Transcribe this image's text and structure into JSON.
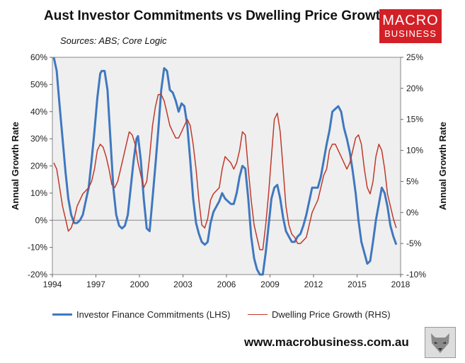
{
  "title": "Aust Investor Commitments vs Dwelling Price Growth",
  "subtitle": "Sources: ABS; Core Logic",
  "logo": {
    "line1": "MACRO",
    "line2": "BUSINESS",
    "color": "#d32027"
  },
  "footer": {
    "url": "www.macrobusiness.com.au",
    "icon": "wolf-icon"
  },
  "chart_data": {
    "type": "line",
    "xlim": [
      1994,
      2018
    ],
    "x_ticks": [
      "1994",
      "1997",
      "2000",
      "2003",
      "2006",
      "2009",
      "2012",
      "2015",
      "2018"
    ],
    "ylabel": "Annual Growth Rate",
    "ylim": [
      -20,
      60
    ],
    "y_ticks": [
      "-20%",
      "-10%",
      "0%",
      "10%",
      "20%",
      "30%",
      "40%",
      "50%",
      "60%"
    ],
    "y2label": "Annual Growth Rate",
    "y2lim": [
      -10,
      25
    ],
    "y2_ticks": [
      "-10%",
      "-5%",
      "0%",
      "5%",
      "10%",
      "15%",
      "20%",
      "25%"
    ],
    "grid": false,
    "legend": "bottom",
    "series": [
      {
        "name": "Investor Finance Commitments (LHS)",
        "axis": "left",
        "color": "#3f78bf",
        "points": [
          [
            1994.1,
            60
          ],
          [
            1994.3,
            55
          ],
          [
            1994.5,
            42
          ],
          [
            1994.7,
            30
          ],
          [
            1994.9,
            18
          ],
          [
            1995.1,
            8
          ],
          [
            1995.3,
            2
          ],
          [
            1995.5,
            -1
          ],
          [
            1995.7,
            -1
          ],
          [
            1995.9,
            0
          ],
          [
            1996.1,
            2
          ],
          [
            1996.3,
            7
          ],
          [
            1996.5,
            12
          ],
          [
            1996.7,
            22
          ],
          [
            1996.9,
            33
          ],
          [
            1997.1,
            45
          ],
          [
            1997.3,
            54
          ],
          [
            1997.4,
            55
          ],
          [
            1997.6,
            55
          ],
          [
            1997.8,
            48
          ],
          [
            1998.0,
            30
          ],
          [
            1998.2,
            12
          ],
          [
            1998.4,
            2
          ],
          [
            1998.6,
            -2
          ],
          [
            1998.8,
            -3
          ],
          [
            1999.0,
            -2
          ],
          [
            1999.2,
            2
          ],
          [
            1999.4,
            12
          ],
          [
            1999.6,
            22
          ],
          [
            1999.8,
            30
          ],
          [
            1999.9,
            31
          ],
          [
            2000.1,
            22
          ],
          [
            2000.3,
            8
          ],
          [
            2000.5,
            -3
          ],
          [
            2000.7,
            -4
          ],
          [
            2000.9,
            8
          ],
          [
            2001.1,
            20
          ],
          [
            2001.3,
            33
          ],
          [
            2001.5,
            48
          ],
          [
            2001.7,
            56
          ],
          [
            2001.9,
            55
          ],
          [
            2002.1,
            48
          ],
          [
            2002.3,
            47
          ],
          [
            2002.5,
            44
          ],
          [
            2002.7,
            40
          ],
          [
            2002.9,
            43
          ],
          [
            2003.1,
            42
          ],
          [
            2003.3,
            35
          ],
          [
            2003.5,
            22
          ],
          [
            2003.7,
            8
          ],
          [
            2003.9,
            -1
          ],
          [
            2004.1,
            -5
          ],
          [
            2004.3,
            -8
          ],
          [
            2004.5,
            -9
          ],
          [
            2004.7,
            -8
          ],
          [
            2004.9,
            -1
          ],
          [
            2005.1,
            3
          ],
          [
            2005.3,
            5
          ],
          [
            2005.5,
            7
          ],
          [
            2005.7,
            10
          ],
          [
            2005.9,
            8
          ],
          [
            2006.1,
            7
          ],
          [
            2006.3,
            6
          ],
          [
            2006.5,
            6
          ],
          [
            2006.7,
            10
          ],
          [
            2006.9,
            16
          ],
          [
            2007.1,
            20
          ],
          [
            2007.3,
            19
          ],
          [
            2007.5,
            8
          ],
          [
            2007.7,
            -6
          ],
          [
            2007.9,
            -14
          ],
          [
            2008.1,
            -18
          ],
          [
            2008.3,
            -20
          ],
          [
            2008.5,
            -20
          ],
          [
            2008.7,
            -12
          ],
          [
            2008.9,
            -2
          ],
          [
            2009.1,
            8
          ],
          [
            2009.3,
            12
          ],
          [
            2009.5,
            13
          ],
          [
            2009.7,
            8
          ],
          [
            2009.9,
            1
          ],
          [
            2010.1,
            -4
          ],
          [
            2010.3,
            -6
          ],
          [
            2010.5,
            -8
          ],
          [
            2010.7,
            -8
          ],
          [
            2010.9,
            -6
          ],
          [
            2011.1,
            -5
          ],
          [
            2011.3,
            -2
          ],
          [
            2011.5,
            2
          ],
          [
            2011.7,
            7
          ],
          [
            2011.9,
            12
          ],
          [
            2012.1,
            12
          ],
          [
            2012.3,
            12
          ],
          [
            2012.5,
            16
          ],
          [
            2012.7,
            22
          ],
          [
            2012.9,
            28
          ],
          [
            2013.1,
            33
          ],
          [
            2013.3,
            40
          ],
          [
            2013.5,
            41
          ],
          [
            2013.7,
            42
          ],
          [
            2013.9,
            40
          ],
          [
            2014.1,
            34
          ],
          [
            2014.3,
            30
          ],
          [
            2014.5,
            25
          ],
          [
            2014.7,
            18
          ],
          [
            2014.9,
            10
          ],
          [
            2015.1,
            0
          ],
          [
            2015.3,
            -8
          ],
          [
            2015.5,
            -12
          ],
          [
            2015.7,
            -16
          ],
          [
            2015.9,
            -15
          ],
          [
            2016.1,
            -8
          ],
          [
            2016.3,
            0
          ],
          [
            2016.5,
            6
          ],
          [
            2016.7,
            12
          ],
          [
            2016.9,
            10
          ],
          [
            2017.1,
            5
          ],
          [
            2017.3,
            -2
          ],
          [
            2017.5,
            -6
          ],
          [
            2017.7,
            -9
          ]
        ]
      },
      {
        "name": "Dwelling Price Growth (RHS)",
        "axis": "right",
        "color": "#c0392b",
        "points": [
          [
            1994.1,
            8
          ],
          [
            1994.3,
            7
          ],
          [
            1994.5,
            4
          ],
          [
            1994.7,
            1
          ],
          [
            1994.9,
            -1
          ],
          [
            1995.1,
            -3
          ],
          [
            1995.3,
            -2.5
          ],
          [
            1995.5,
            -1
          ],
          [
            1995.7,
            1
          ],
          [
            1995.9,
            2
          ],
          [
            1996.1,
            3
          ],
          [
            1996.3,
            3.5
          ],
          [
            1996.5,
            4
          ],
          [
            1996.7,
            5
          ],
          [
            1996.9,
            7
          ],
          [
            1997.1,
            10
          ],
          [
            1997.3,
            11
          ],
          [
            1997.5,
            10.5
          ],
          [
            1997.7,
            9
          ],
          [
            1997.9,
            7
          ],
          [
            1998.1,
            4.5
          ],
          [
            1998.3,
            4
          ],
          [
            1998.5,
            5
          ],
          [
            1998.7,
            7
          ],
          [
            1998.9,
            9
          ],
          [
            1999.1,
            11
          ],
          [
            1999.3,
            13
          ],
          [
            1999.5,
            12.5
          ],
          [
            1999.7,
            11
          ],
          [
            1999.9,
            8
          ],
          [
            2000.1,
            6
          ],
          [
            2000.3,
            4
          ],
          [
            2000.5,
            5
          ],
          [
            2000.7,
            9
          ],
          [
            2000.9,
            14
          ],
          [
            2001.1,
            17
          ],
          [
            2001.3,
            19
          ],
          [
            2001.5,
            19
          ],
          [
            2001.7,
            18
          ],
          [
            2001.9,
            16
          ],
          [
            2002.1,
            14
          ],
          [
            2002.3,
            13
          ],
          [
            2002.5,
            12
          ],
          [
            2002.7,
            12
          ],
          [
            2002.9,
            13
          ],
          [
            2003.1,
            14
          ],
          [
            2003.3,
            15
          ],
          [
            2003.5,
            14
          ],
          [
            2003.7,
            11
          ],
          [
            2003.9,
            7
          ],
          [
            2004.1,
            2
          ],
          [
            2004.3,
            -2
          ],
          [
            2004.5,
            -2.5
          ],
          [
            2004.7,
            -1
          ],
          [
            2004.9,
            2
          ],
          [
            2005.1,
            3
          ],
          [
            2005.3,
            3.5
          ],
          [
            2005.5,
            4
          ],
          [
            2005.7,
            7
          ],
          [
            2005.9,
            9
          ],
          [
            2006.1,
            8.5
          ],
          [
            2006.3,
            8
          ],
          [
            2006.5,
            7
          ],
          [
            2006.7,
            8
          ],
          [
            2006.9,
            10
          ],
          [
            2007.1,
            13
          ],
          [
            2007.3,
            12.5
          ],
          [
            2007.5,
            7
          ],
          [
            2007.7,
            2
          ],
          [
            2007.9,
            -2
          ],
          [
            2008.1,
            -4
          ],
          [
            2008.3,
            -6
          ],
          [
            2008.5,
            -6
          ],
          [
            2008.7,
            -2
          ],
          [
            2008.9,
            3
          ],
          [
            2009.1,
            9
          ],
          [
            2009.3,
            15
          ],
          [
            2009.5,
            16
          ],
          [
            2009.7,
            13
          ],
          [
            2009.9,
            7
          ],
          [
            2010.1,
            1
          ],
          [
            2010.3,
            -2
          ],
          [
            2010.5,
            -3.5
          ],
          [
            2010.7,
            -4
          ],
          [
            2010.9,
            -5
          ],
          [
            2011.1,
            -5
          ],
          [
            2011.3,
            -4.5
          ],
          [
            2011.5,
            -4
          ],
          [
            2011.7,
            -2
          ],
          [
            2011.9,
            0
          ],
          [
            2012.1,
            1
          ],
          [
            2012.3,
            2
          ],
          [
            2012.5,
            4
          ],
          [
            2012.7,
            6
          ],
          [
            2012.9,
            7
          ],
          [
            2013.1,
            10
          ],
          [
            2013.3,
            11
          ],
          [
            2013.5,
            11
          ],
          [
            2013.7,
            10
          ],
          [
            2013.9,
            9
          ],
          [
            2014.1,
            8
          ],
          [
            2014.3,
            7
          ],
          [
            2014.5,
            8
          ],
          [
            2014.7,
            10
          ],
          [
            2014.9,
            12
          ],
          [
            2015.1,
            12.5
          ],
          [
            2015.3,
            11
          ],
          [
            2015.5,
            7
          ],
          [
            2015.7,
            4
          ],
          [
            2015.9,
            3
          ],
          [
            2016.1,
            5
          ],
          [
            2016.3,
            9
          ],
          [
            2016.5,
            11
          ],
          [
            2016.7,
            10
          ],
          [
            2016.9,
            7
          ],
          [
            2017.1,
            3
          ],
          [
            2017.3,
            1
          ],
          [
            2017.5,
            -1
          ],
          [
            2017.7,
            -2.5
          ]
        ]
      }
    ]
  }
}
